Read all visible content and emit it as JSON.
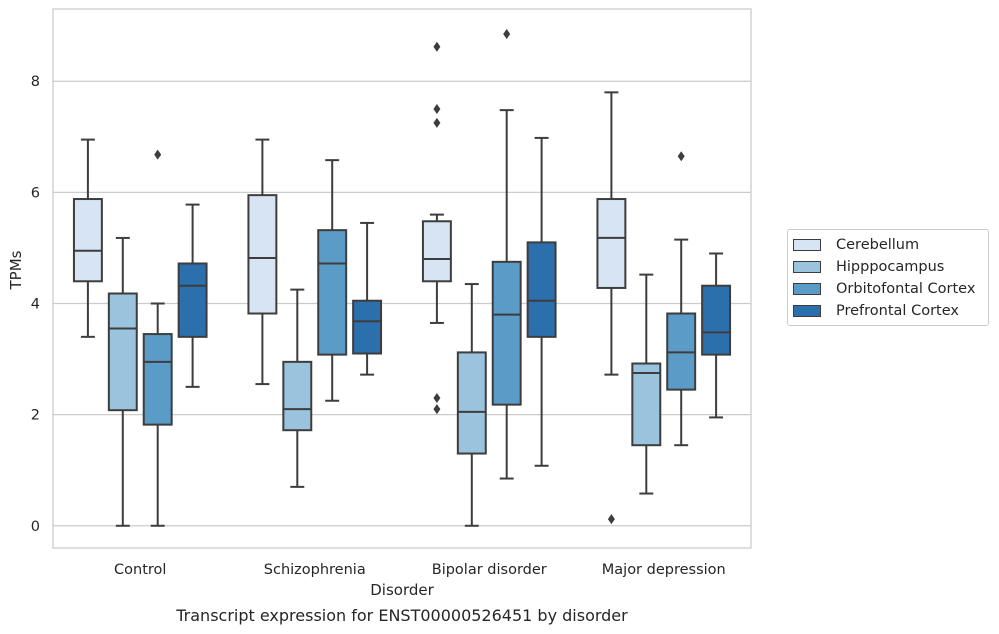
{
  "caption": "Transcript expression for ENST00000526451 by disorder",
  "chart_data": {
    "type": "boxplot",
    "xlabel": "Disorder",
    "ylabel": "TPMs",
    "ylim": [
      -0.4,
      9.3
    ],
    "yticks": [
      0,
      2,
      4,
      6,
      8
    ],
    "grid": "horizontal",
    "legend_position": "center-right",
    "categories": [
      "Control",
      "Schizophrenia",
      "Bipolar disorder",
      "Major depression"
    ],
    "series": [
      {
        "name": "Cerebellum",
        "color": "#d6e4f4",
        "boxes": [
          {
            "whislo": 3.4,
            "q1": 4.4,
            "med": 4.95,
            "q3": 5.88,
            "whishi": 6.95,
            "fliers": []
          },
          {
            "whislo": 2.55,
            "q1": 3.82,
            "med": 4.82,
            "q3": 5.95,
            "whishi": 6.95,
            "fliers": []
          },
          {
            "whislo": 3.65,
            "q1": 4.4,
            "med": 4.8,
            "q3": 5.48,
            "whishi": 5.6,
            "fliers": [
              7.25,
              7.5,
              8.62,
              2.1,
              2.3
            ]
          },
          {
            "whislo": 2.72,
            "q1": 4.28,
            "med": 5.18,
            "q3": 5.88,
            "whishi": 7.8,
            "fliers": [
              0.12
            ]
          }
        ]
      },
      {
        "name": "Hipppocampus",
        "color": "#9ac3dd",
        "boxes": [
          {
            "whislo": 0.0,
            "q1": 2.08,
            "med": 3.55,
            "q3": 4.18,
            "whishi": 5.18,
            "fliers": []
          },
          {
            "whislo": 0.7,
            "q1": 1.72,
            "med": 2.1,
            "q3": 2.95,
            "whishi": 4.25,
            "fliers": []
          },
          {
            "whislo": 0.0,
            "q1": 1.3,
            "med": 2.05,
            "q3": 3.12,
            "whishi": 4.35,
            "fliers": []
          },
          {
            "whislo": 0.58,
            "q1": 1.45,
            "med": 2.75,
            "q3": 2.92,
            "whishi": 4.52,
            "fliers": []
          }
        ]
      },
      {
        "name": "Orbitofontal Cortex",
        "color": "#5b9bc8",
        "boxes": [
          {
            "whislo": 0.0,
            "q1": 1.82,
            "med": 2.95,
            "q3": 3.45,
            "whishi": 4.0,
            "fliers": [
              6.68
            ]
          },
          {
            "whislo": 2.25,
            "q1": 3.08,
            "med": 4.72,
            "q3": 5.32,
            "whishi": 6.58,
            "fliers": []
          },
          {
            "whislo": 0.85,
            "q1": 2.18,
            "med": 3.8,
            "q3": 4.75,
            "whishi": 7.48,
            "fliers": [
              8.85
            ]
          },
          {
            "whislo": 1.45,
            "q1": 2.45,
            "med": 3.12,
            "q3": 3.82,
            "whishi": 5.15,
            "fliers": [
              6.65
            ]
          }
        ]
      },
      {
        "name": "Prefrontal Cortex",
        "color": "#2c6fad",
        "boxes": [
          {
            "whislo": 2.5,
            "q1": 3.4,
            "med": 4.32,
            "q3": 4.72,
            "whishi": 5.78,
            "fliers": []
          },
          {
            "whislo": 2.72,
            "q1": 3.1,
            "med": 3.68,
            "q3": 4.05,
            "whishi": 5.45,
            "fliers": []
          },
          {
            "whislo": 1.08,
            "q1": 3.4,
            "med": 4.05,
            "q3": 5.1,
            "whishi": 6.98,
            "fliers": []
          },
          {
            "whislo": 1.95,
            "q1": 3.08,
            "med": 3.48,
            "q3": 4.32,
            "whishi": 4.9,
            "fliers": []
          }
        ]
      }
    ]
  }
}
